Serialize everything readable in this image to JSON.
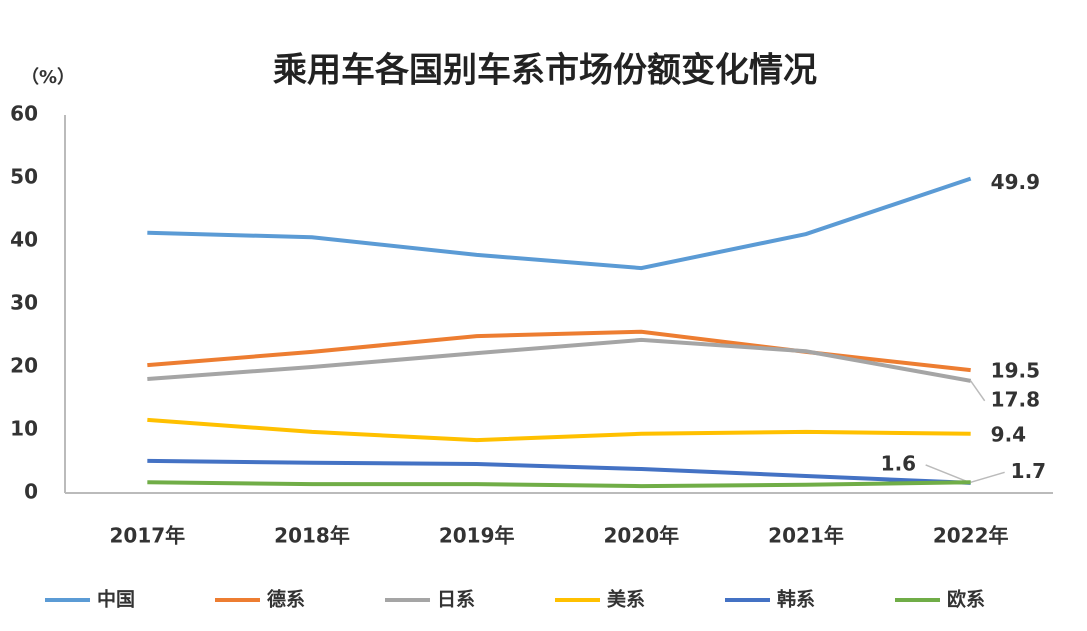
{
  "chart_data": {
    "type": "line",
    "title": "乘用车各国别车系市场份额变化情况",
    "y_label": "（%）",
    "categories": [
      "2017年",
      "2018年",
      "2019年",
      "2020年",
      "2021年",
      "2022年"
    ],
    "ylim": [
      0,
      60
    ],
    "yticks": [
      0,
      10,
      20,
      30,
      40,
      50,
      60
    ],
    "grid": false,
    "legend": "bottom",
    "series": [
      {
        "name": "中国",
        "color": "#5b9bd5",
        "values": [
          41.3,
          40.6,
          37.8,
          35.7,
          41.1,
          49.9
        ]
      },
      {
        "name": "德系",
        "color": "#ed7d31",
        "values": [
          20.3,
          22.4,
          24.9,
          25.6,
          22.4,
          19.5
        ]
      },
      {
        "name": "日系",
        "color": "#a5a5a5",
        "values": [
          18.1,
          20.0,
          22.2,
          24.3,
          22.5,
          17.8
        ]
      },
      {
        "name": "美系",
        "color": "#ffc000",
        "values": [
          11.6,
          9.7,
          8.4,
          9.4,
          9.7,
          9.4
        ]
      },
      {
        "name": "韩系",
        "color": "#4472c4",
        "values": [
          5.1,
          4.8,
          4.6,
          3.8,
          2.7,
          1.6
        ]
      },
      {
        "name": "欧系",
        "color": "#70ad47",
        "values": [
          1.7,
          1.4,
          1.4,
          1.1,
          1.3,
          1.7
        ]
      }
    ]
  }
}
